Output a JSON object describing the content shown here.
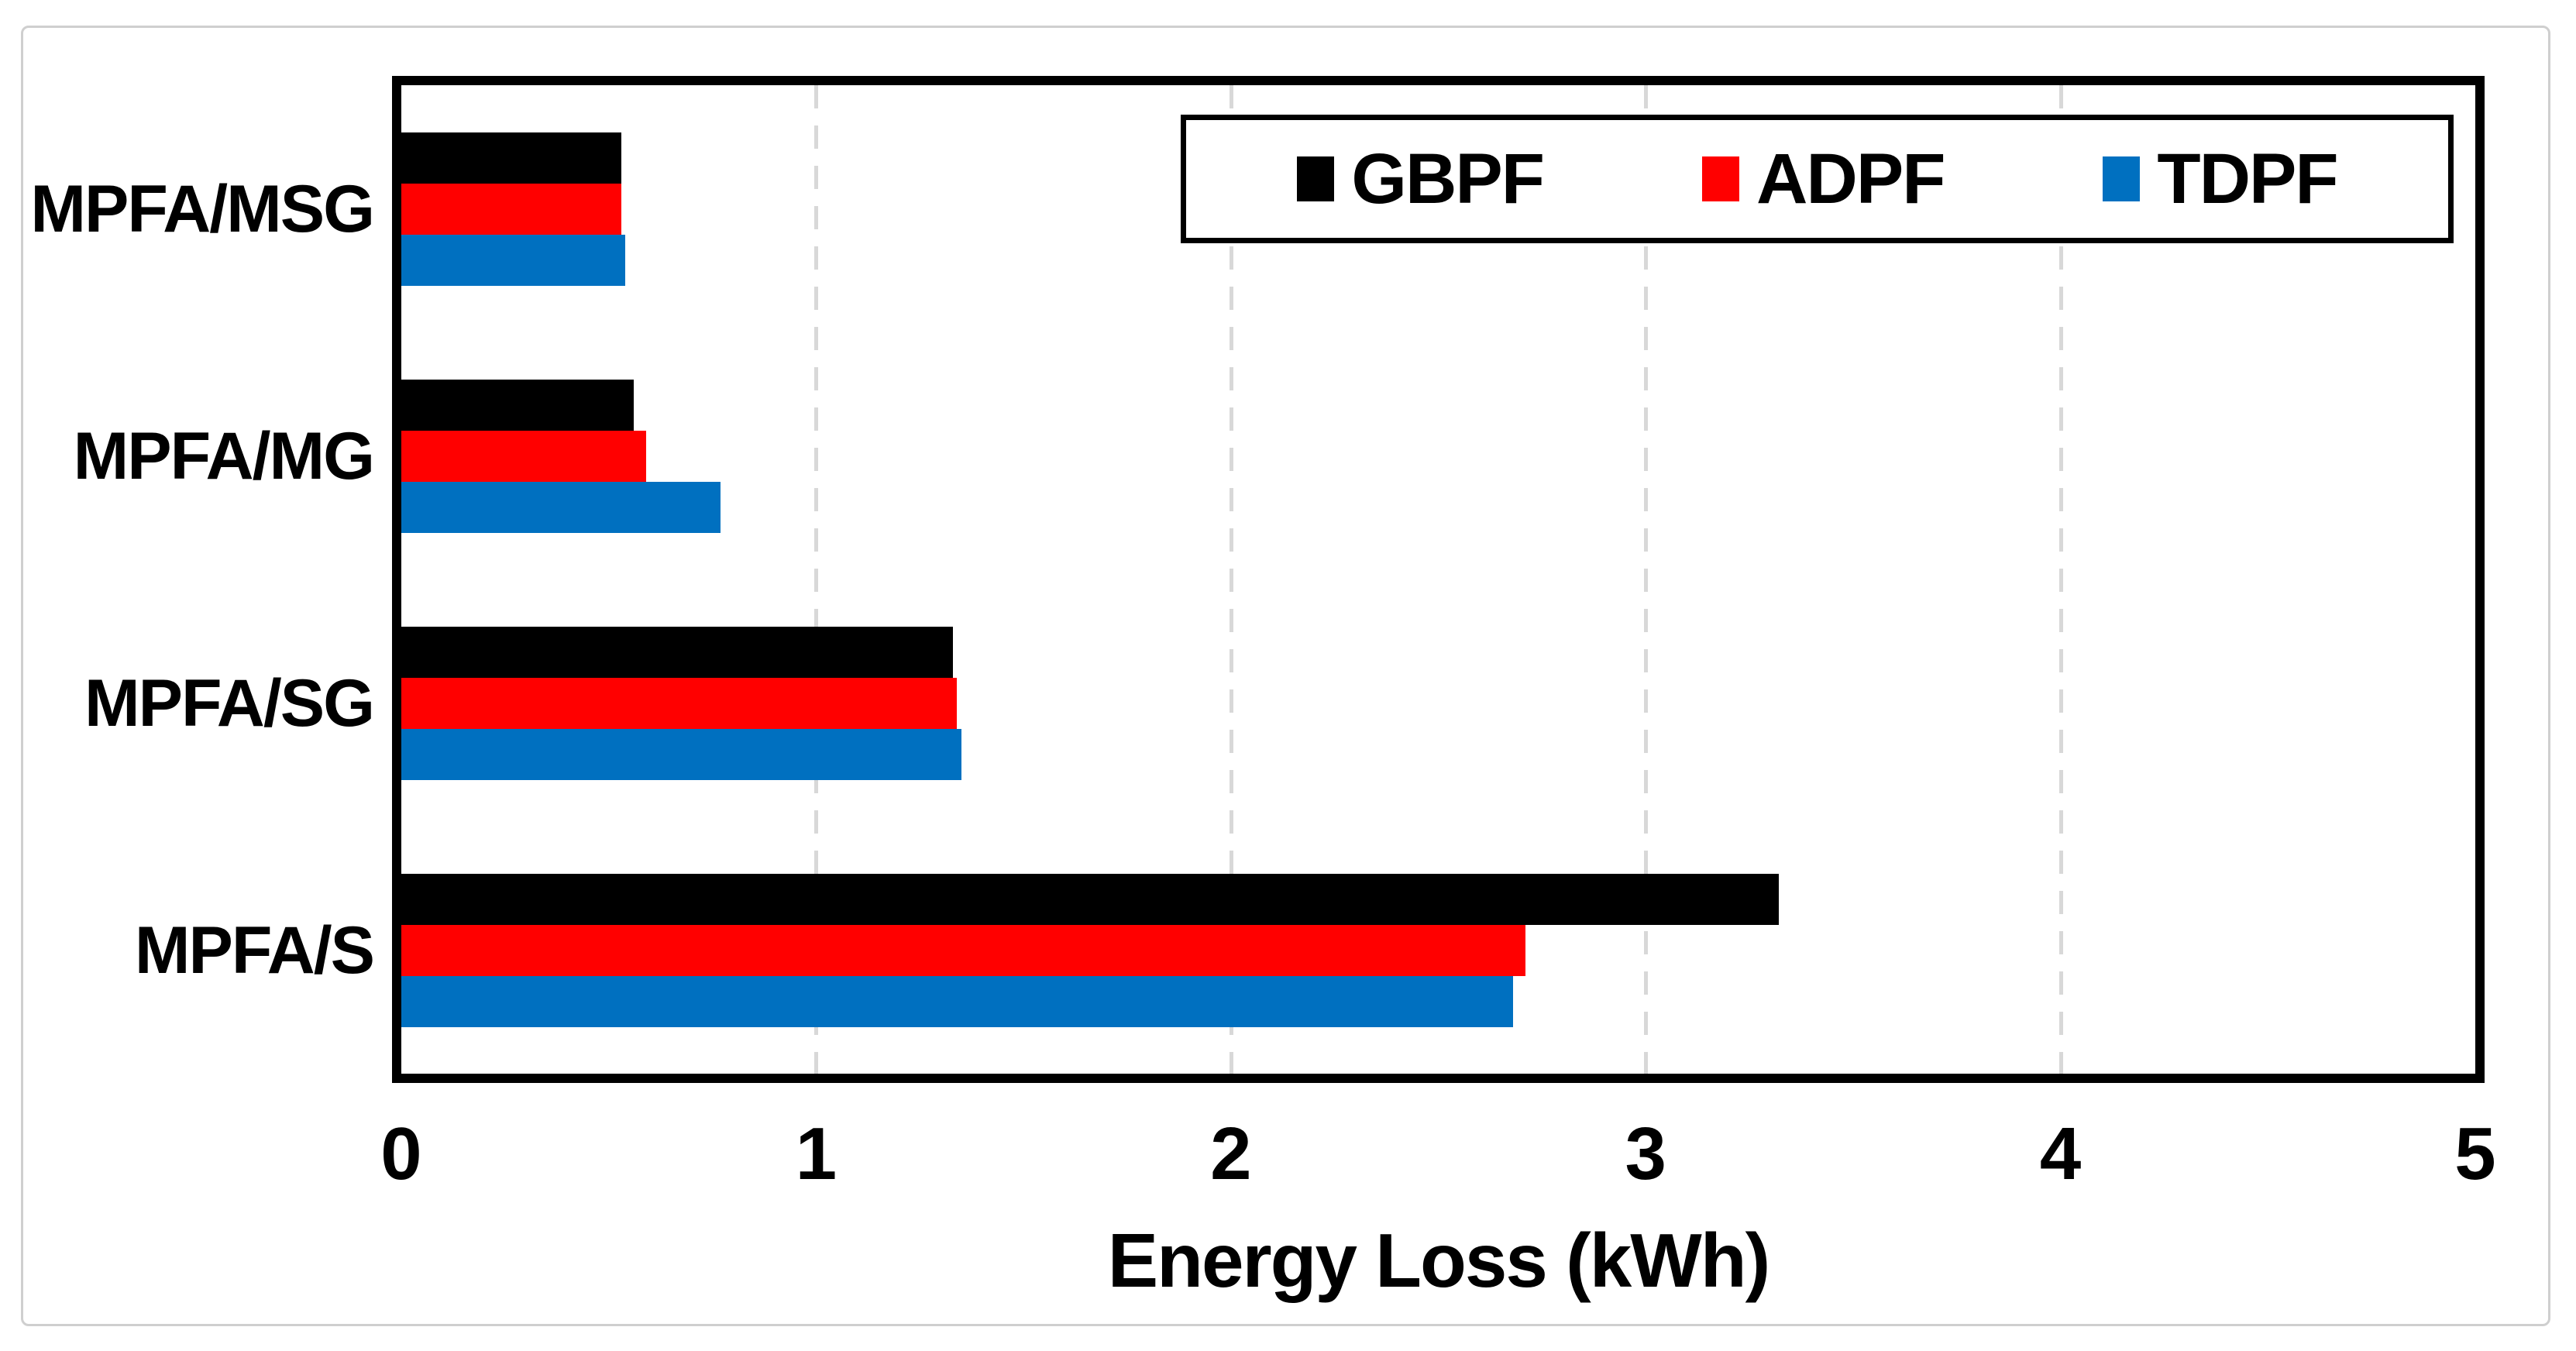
{
  "canvas": {
    "background_color": "#ffffff",
    "frame_border_color": "#cfcfcf"
  },
  "colors": {
    "plot_border": "#000000",
    "gridline": "#d8d8d8",
    "text": "#000000",
    "legend_border": "#000000"
  },
  "axis": {
    "title": "Energy Loss (kWh)",
    "tick_labels": [
      "0",
      "1",
      "2",
      "3",
      "4",
      "5"
    ]
  },
  "legend": {
    "items": [
      {
        "label": "GBPF",
        "color": "#000000"
      },
      {
        "label": "ADPF",
        "color": "#ff0000"
      },
      {
        "label": "TDPF",
        "color": "#0070c0"
      }
    ]
  },
  "chart_data": {
    "type": "bar",
    "orientation": "horizontal",
    "title": "",
    "xlabel": "Energy Loss (kWh)",
    "ylabel": "",
    "xlim": [
      0,
      5
    ],
    "x_ticks": [
      0,
      1,
      2,
      3,
      4,
      5
    ],
    "grid": "vertical dashed gridlines at 1, 2, 3, 4",
    "legend_position": "inside top-right",
    "categories": [
      "MPFA/MSG",
      "MPFA/MG",
      "MPFA/SG",
      "MPFA/S"
    ],
    "series": [
      {
        "name": "GBPF",
        "color": "#000000",
        "values": [
          0.53,
          0.56,
          1.33,
          3.32
        ]
      },
      {
        "name": "ADPF",
        "color": "#ff0000",
        "values": [
          0.53,
          0.59,
          1.34,
          2.71
        ]
      },
      {
        "name": "TDPF",
        "color": "#0070c0",
        "values": [
          0.54,
          0.77,
          1.35,
          2.68
        ]
      }
    ]
  }
}
